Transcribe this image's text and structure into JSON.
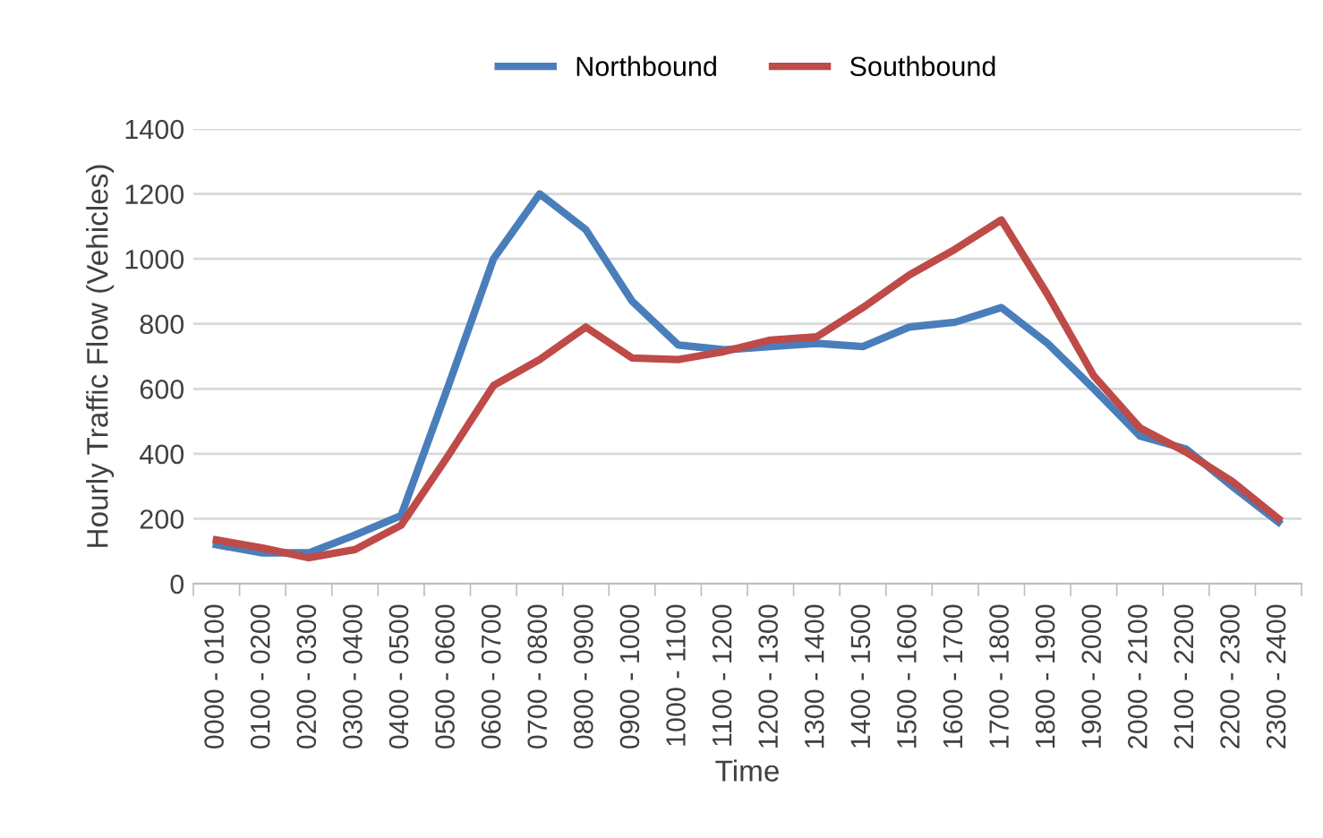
{
  "chart_data": {
    "type": "line",
    "xlabel": "Time",
    "ylabel": "Hourly Traffic Flow (Vehicles)",
    "categories": [
      "0000 - 0100",
      "0100 - 0200",
      "0200 - 0300",
      "0300 - 0400",
      "0400 - 0500",
      "0500 - 0600",
      "0600 - 0700",
      "0700 - 0800",
      "0800 - 0900",
      "0900 - 1000",
      "1000 - 1100",
      "1100 - 1200",
      "1200 - 1300",
      "1300 - 1400",
      "1400 - 1500",
      "1500 - 1600",
      "1600 - 1700",
      "1700 - 1800",
      "1800 - 1900",
      "1900 - 2000",
      "2000 - 2100",
      "2100 - 2200",
      "2200 - 2300",
      "2300 - 2400"
    ],
    "series": [
      {
        "name": "Northbound",
        "color": "#4a7ebb",
        "values": [
          120,
          95,
          95,
          150,
          210,
          600,
          1000,
          1200,
          1090,
          870,
          735,
          720,
          730,
          740,
          730,
          790,
          805,
          850,
          740,
          600,
          455,
          415,
          300,
          190
        ]
      },
      {
        "name": "Southbound",
        "color": "#be4b48",
        "values": [
          135,
          110,
          80,
          105,
          180,
          390,
          610,
          690,
          790,
          695,
          690,
          715,
          750,
          760,
          850,
          950,
          1030,
          1120,
          890,
          640,
          480,
          405,
          315,
          200
        ]
      }
    ],
    "ylim": [
      0,
      1400
    ],
    "yticks": [
      0,
      200,
      400,
      600,
      800,
      1000,
      1200,
      1400
    ],
    "grid": "y",
    "legend": "top",
    "marker": "none",
    "line_style": "solid"
  }
}
